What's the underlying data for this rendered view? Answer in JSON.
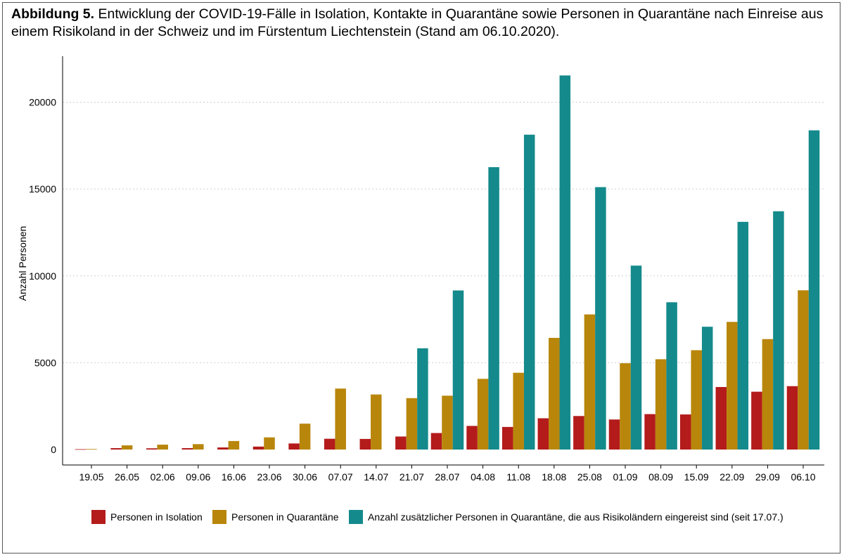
{
  "caption": {
    "bold": "Abbildung 5.",
    "text": "Entwicklung der COVID-19-Fälle in Isolation, Kontakte in Quarantäne sowie Personen in Quarantäne nach Einreise aus einem Risikoland in der Schweiz und im Fürstentum Liechtenstein (Stand am 06.10.2020)."
  },
  "colors": {
    "isolation": "#b41b1b",
    "quarantine": "#b8860b",
    "travel": "#148a8c"
  },
  "chart_data": {
    "type": "bar",
    "title": "Abbildung 5. Entwicklung der COVID-19-Fälle in Isolation, Kontakte in Quarantäne sowie Personen in Quarantäne nach Einreise aus einem Risikoland in der Schweiz und im Fürstentum Liechtenstein (Stand am 06.10.2020).",
    "xlabel": "",
    "ylabel": "Anzahl Personen",
    "ylim": [
      0,
      22500
    ],
    "yticks": [
      0,
      5000,
      10000,
      15000,
      20000
    ],
    "grid": "horizontal dotted",
    "legend_position": "bottom",
    "categories": [
      "19.05",
      "26.05",
      "02.06",
      "09.06",
      "16.06",
      "23.06",
      "30.06",
      "07.07",
      "14.07",
      "21.07",
      "28.07",
      "04.08",
      "11.08",
      "18.08",
      "25.08",
      "01.09",
      "08.09",
      "15.09",
      "22.09",
      "29.09",
      "06.10"
    ],
    "series": [
      {
        "name": "Personen in Isolation",
        "color_key": "isolation",
        "values": [
          20,
          80,
          70,
          80,
          120,
          170,
          350,
          620,
          610,
          750,
          950,
          1360,
          1300,
          1800,
          1930,
          1730,
          2040,
          2020,
          3600,
          3330,
          3650
        ]
      },
      {
        "name": "Personen in Quarantäne",
        "color_key": "quarantine",
        "values": [
          30,
          240,
          280,
          310,
          490,
          700,
          1490,
          3510,
          3170,
          2960,
          3100,
          4070,
          4420,
          6430,
          7780,
          4970,
          5200,
          5720,
          7350,
          6360,
          9170
        ]
      },
      {
        "name": "Anzahl zusätzlicher Personen in Quarantäne, die aus Risikoländern eingereist sind (seit 17.07.)",
        "color_key": "travel",
        "values": [
          null,
          null,
          null,
          null,
          null,
          null,
          null,
          null,
          null,
          5830,
          9160,
          16260,
          18130,
          21540,
          15110,
          10590,
          8480,
          7070,
          13110,
          13720,
          18380
        ]
      }
    ]
  }
}
